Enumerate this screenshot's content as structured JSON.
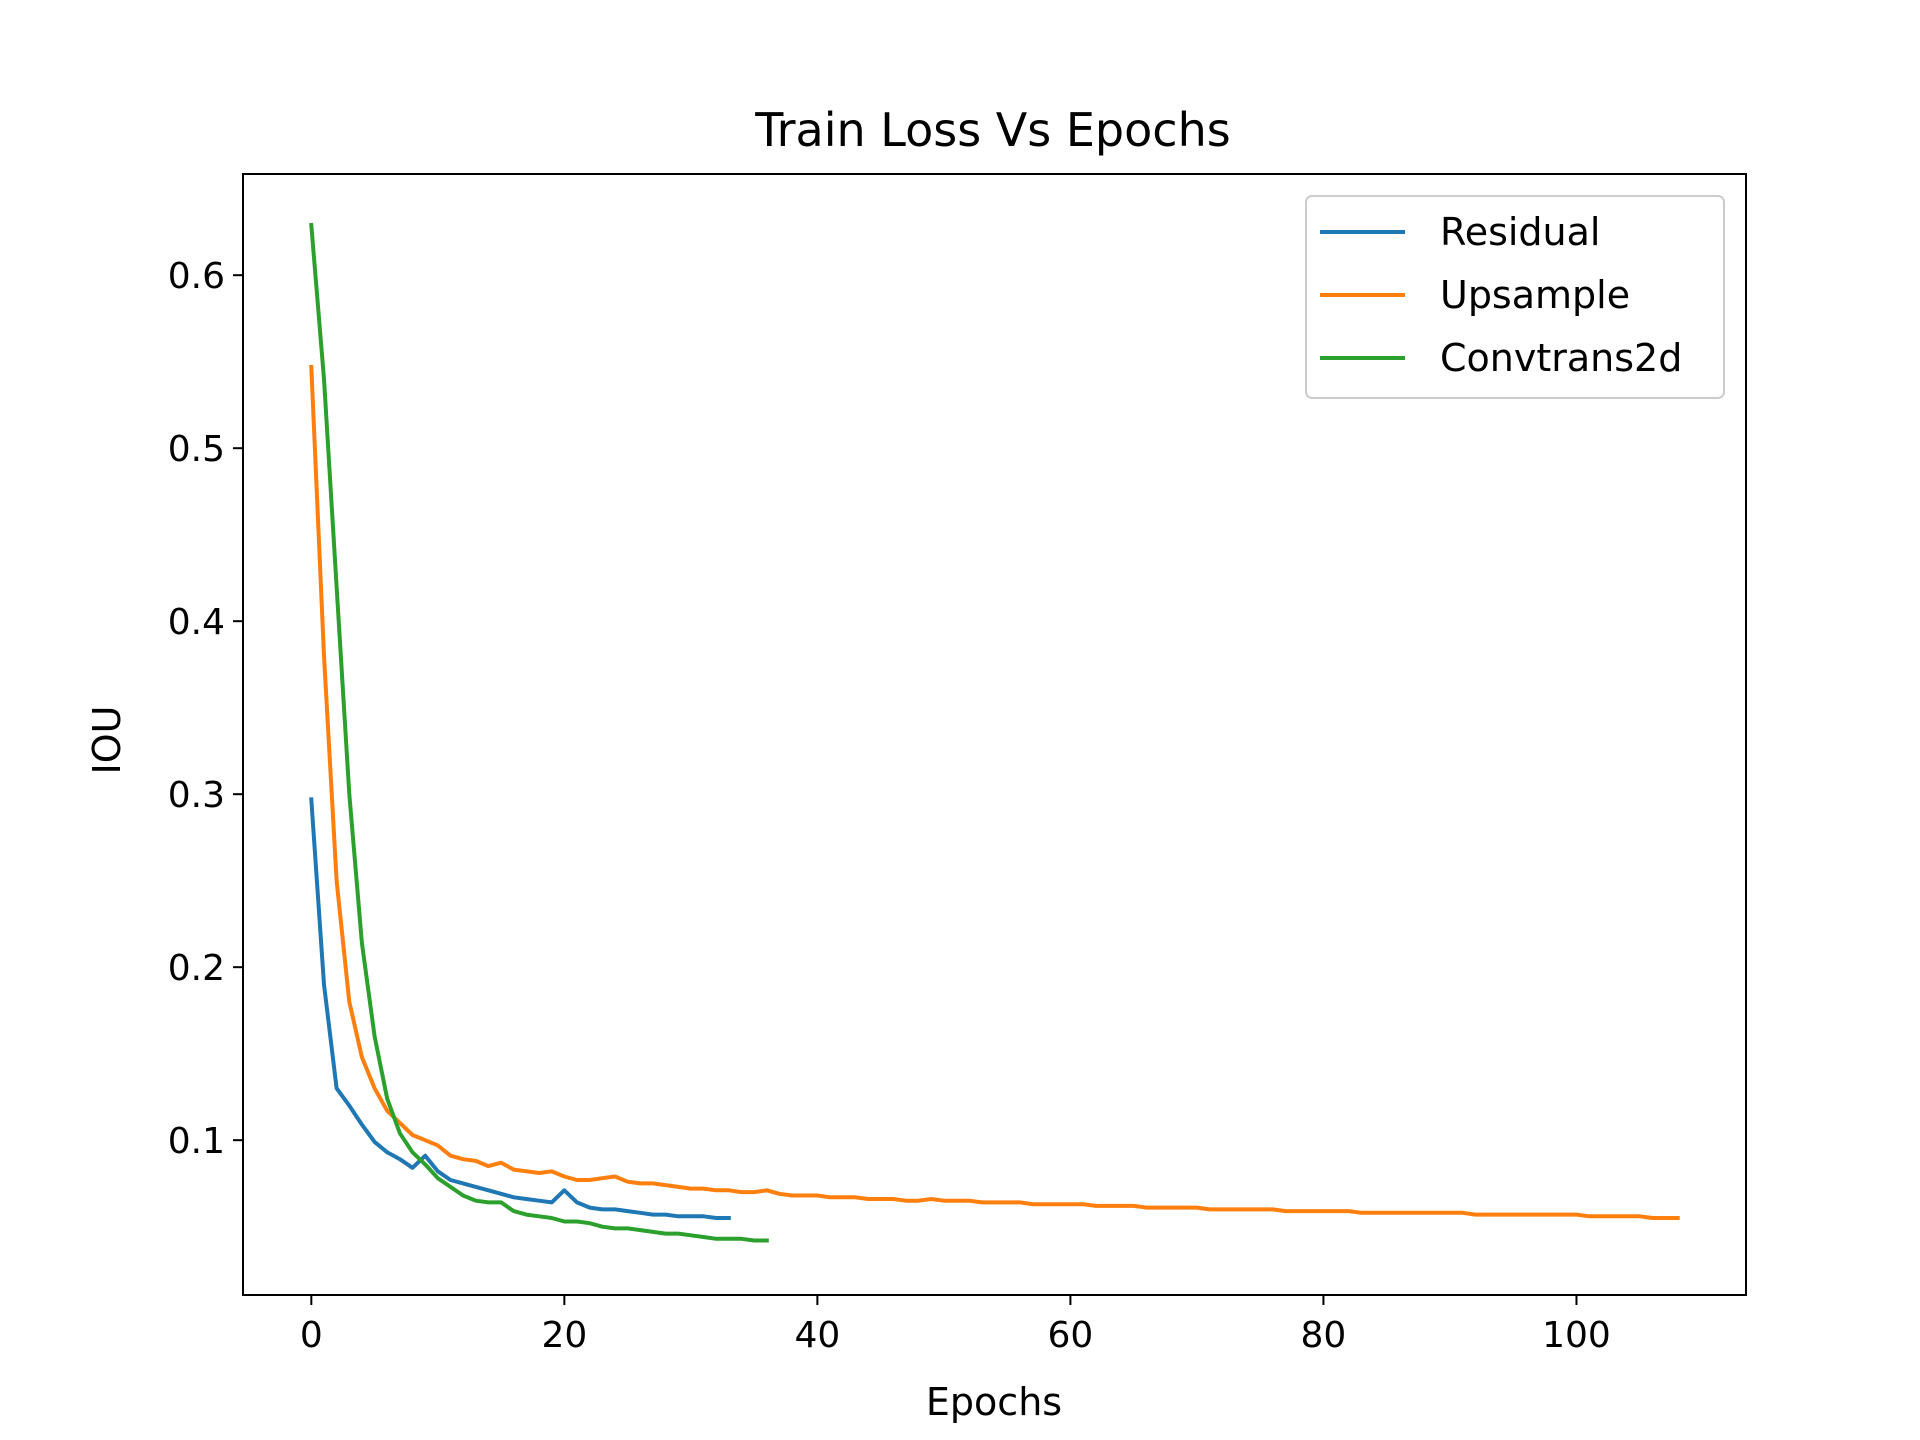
{
  "chart_data": {
    "type": "line",
    "title": "Train Loss Vs Epochs",
    "xlabel": "Epochs",
    "ylabel": "IOU",
    "xlim": [
      -5.4,
      113.4
    ],
    "ylim": [
      0.0105,
      0.6585
    ],
    "xticks": [
      0,
      20,
      40,
      60,
      80,
      100
    ],
    "xtick_labels": [
      "0",
      "20",
      "40",
      "60",
      "80",
      "100"
    ],
    "yticks": [
      0.1,
      0.2,
      0.3,
      0.4,
      0.5,
      0.6
    ],
    "ytick_labels": [
      "0.1",
      "0.2",
      "0.3",
      "0.4",
      "0.5",
      "0.6"
    ],
    "grid": false,
    "legend_position": "top-right",
    "series": [
      {
        "name": "Residual",
        "color": "#1f77b4",
        "x": [
          0,
          1,
          2,
          3,
          4,
          5,
          6,
          7,
          8,
          9,
          10,
          11,
          12,
          13,
          14,
          15,
          16,
          17,
          18,
          19,
          20,
          21,
          22,
          23,
          24,
          25,
          26,
          27,
          28,
          29,
          30,
          31,
          32,
          33
        ],
        "y": [
          0.297,
          0.19,
          0.13,
          0.12,
          0.109,
          0.099,
          0.093,
          0.089,
          0.084,
          0.091,
          0.082,
          0.077,
          0.075,
          0.073,
          0.071,
          0.069,
          0.067,
          0.066,
          0.065,
          0.064,
          0.071,
          0.064,
          0.061,
          0.06,
          0.06,
          0.059,
          0.058,
          0.057,
          0.057,
          0.056,
          0.056,
          0.056,
          0.055,
          0.055
        ]
      },
      {
        "name": "Upsample",
        "color": "#ff7f0e",
        "x": [
          0,
          1,
          2,
          3,
          4,
          5,
          6,
          7,
          8,
          9,
          10,
          11,
          12,
          13,
          14,
          15,
          16,
          17,
          18,
          19,
          20,
          21,
          22,
          23,
          24,
          25,
          26,
          27,
          28,
          29,
          30,
          31,
          32,
          33,
          34,
          35,
          36,
          37,
          38,
          39,
          40,
          41,
          42,
          43,
          44,
          45,
          46,
          47,
          48,
          49,
          50,
          51,
          52,
          53,
          54,
          55,
          56,
          57,
          58,
          59,
          60,
          61,
          62,
          63,
          64,
          65,
          66,
          67,
          68,
          69,
          70,
          71,
          72,
          73,
          74,
          75,
          76,
          77,
          78,
          79,
          80,
          81,
          82,
          83,
          84,
          85,
          86,
          87,
          88,
          89,
          90,
          91,
          92,
          93,
          94,
          95,
          96,
          97,
          98,
          99,
          100,
          101,
          102,
          103,
          104,
          105,
          106,
          107,
          108
        ],
        "y": [
          0.547,
          0.38,
          0.25,
          0.18,
          0.148,
          0.13,
          0.117,
          0.11,
          0.103,
          0.1,
          0.097,
          0.091,
          0.089,
          0.088,
          0.085,
          0.087,
          0.083,
          0.082,
          0.081,
          0.082,
          0.079,
          0.077,
          0.077,
          0.078,
          0.079,
          0.076,
          0.075,
          0.075,
          0.074,
          0.073,
          0.072,
          0.072,
          0.071,
          0.071,
          0.07,
          0.07,
          0.071,
          0.069,
          0.068,
          0.068,
          0.068,
          0.067,
          0.067,
          0.067,
          0.066,
          0.066,
          0.066,
          0.065,
          0.065,
          0.066,
          0.065,
          0.065,
          0.065,
          0.064,
          0.064,
          0.064,
          0.064,
          0.063,
          0.063,
          0.063,
          0.063,
          0.063,
          0.062,
          0.062,
          0.062,
          0.062,
          0.061,
          0.061,
          0.061,
          0.061,
          0.061,
          0.06,
          0.06,
          0.06,
          0.06,
          0.06,
          0.06,
          0.059,
          0.059,
          0.059,
          0.059,
          0.059,
          0.059,
          0.058,
          0.058,
          0.058,
          0.058,
          0.058,
          0.058,
          0.058,
          0.058,
          0.058,
          0.057,
          0.057,
          0.057,
          0.057,
          0.057,
          0.057,
          0.057,
          0.057,
          0.057,
          0.056,
          0.056,
          0.056,
          0.056,
          0.056,
          0.055,
          0.055,
          0.055
        ]
      },
      {
        "name": "Convtrans2d",
        "color": "#2ca02c",
        "x": [
          0,
          1,
          2,
          3,
          4,
          5,
          6,
          7,
          8,
          9,
          10,
          11,
          12,
          13,
          14,
          15,
          16,
          17,
          18,
          19,
          20,
          21,
          22,
          23,
          24,
          25,
          26,
          27,
          28,
          29,
          30,
          31,
          32,
          33,
          34,
          35,
          36
        ],
        "y": [
          0.629,
          0.54,
          0.42,
          0.3,
          0.214,
          0.16,
          0.124,
          0.104,
          0.093,
          0.086,
          0.078,
          0.073,
          0.068,
          0.065,
          0.064,
          0.064,
          0.059,
          0.057,
          0.056,
          0.055,
          0.053,
          0.053,
          0.052,
          0.05,
          0.049,
          0.049,
          0.048,
          0.047,
          0.046,
          0.046,
          0.045,
          0.044,
          0.043,
          0.043,
          0.043,
          0.042,
          0.042
        ]
      }
    ]
  }
}
